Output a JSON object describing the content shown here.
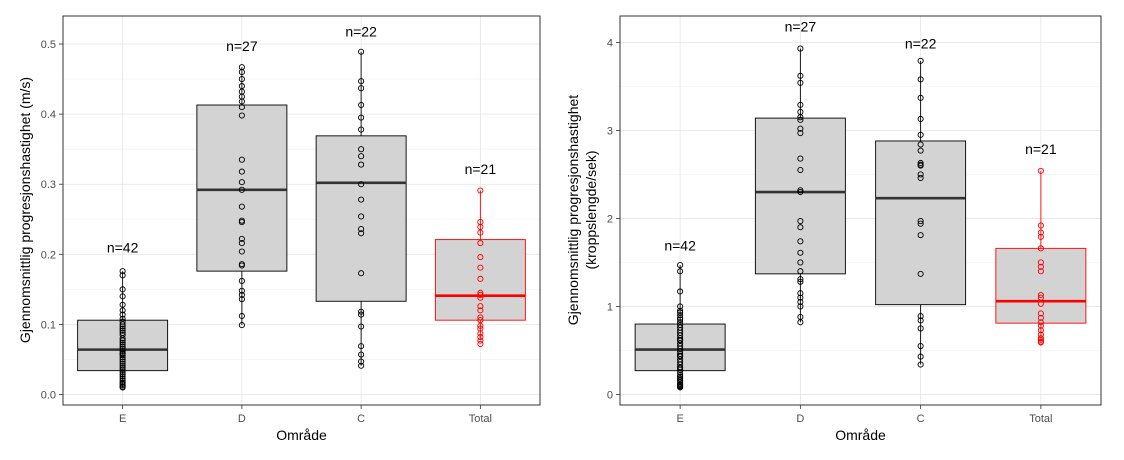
{
  "chart_data": [
    {
      "type": "boxplot",
      "xlabel": "Område",
      "ylabel": "Gjennomsnittlig progresjonshastighet (m/s)",
      "ylabel_lines": [
        "Gjennomsnittlig progresjonshastighet (m/s)"
      ],
      "ylim": [
        -0.015,
        0.54
      ],
      "yticks": [
        0.0,
        0.1,
        0.2,
        0.3,
        0.4,
        0.5
      ],
      "ytick_labels": [
        "0.0",
        "0.1",
        "0.2",
        "0.3",
        "0.4",
        "0.5"
      ],
      "categories": [
        "E",
        "D",
        "C",
        "Total"
      ],
      "grid": true,
      "boxes": [
        {
          "category": "E",
          "color": "#000000",
          "q1": 0.034,
          "median": 0.064,
          "q3": 0.106,
          "whisker_low": 0.01,
          "whisker_high": 0.176,
          "n_label": "n=42",
          "label_y": 0.21,
          "points": [
            0.176,
            0.17,
            0.15,
            0.14,
            0.128,
            0.12,
            0.114,
            0.108,
            0.104,
            0.1,
            0.097,
            0.094,
            0.091,
            0.088,
            0.085,
            0.08,
            0.077,
            0.074,
            0.071,
            0.068,
            0.065,
            0.062,
            0.059,
            0.056,
            0.053,
            0.05,
            0.047,
            0.044,
            0.041,
            0.038,
            0.035,
            0.032,
            0.029,
            0.026,
            0.023,
            0.02,
            0.017,
            0.015,
            0.013,
            0.011,
            0.01,
            0.058
          ]
        },
        {
          "category": "D",
          "color": "#000000",
          "q1": 0.176,
          "median": 0.292,
          "q3": 0.413,
          "whisker_low": 0.099,
          "whisker_high": 0.467,
          "n_label": "n=27",
          "label_y": 0.497,
          "points": [
            0.467,
            0.46,
            0.45,
            0.44,
            0.432,
            0.425,
            0.418,
            0.41,
            0.398,
            0.335,
            0.318,
            0.303,
            0.292,
            0.268,
            0.248,
            0.246,
            0.222,
            0.216,
            0.204,
            0.186,
            0.184,
            0.162,
            0.148,
            0.142,
            0.136,
            0.112,
            0.099
          ]
        },
        {
          "category": "C",
          "color": "#000000",
          "q1": 0.133,
          "median": 0.302,
          "q3": 0.369,
          "whisker_low": 0.041,
          "whisker_high": 0.489,
          "n_label": "n=22",
          "label_y": 0.518,
          "points": [
            0.489,
            0.447,
            0.437,
            0.413,
            0.395,
            0.378,
            0.35,
            0.34,
            0.328,
            0.3,
            0.278,
            0.254,
            0.236,
            0.23,
            0.173,
            0.118,
            0.114,
            0.097,
            0.069,
            0.057,
            0.047,
            0.041
          ]
        },
        {
          "category": "Total",
          "color": "#ff0000",
          "q1": 0.106,
          "median": 0.141,
          "q3": 0.221,
          "whisker_low": 0.077,
          "whisker_high": 0.291,
          "n_label": "n=21",
          "label_y": 0.322,
          "points": [
            0.291,
            0.246,
            0.239,
            0.231,
            0.216,
            0.196,
            0.181,
            0.165,
            0.145,
            0.142,
            0.138,
            0.126,
            0.12,
            0.11,
            0.106,
            0.098,
            0.094,
            0.087,
            0.082,
            0.077,
            0.072
          ]
        }
      ]
    },
    {
      "type": "boxplot",
      "xlabel": "Område",
      "ylabel": "Gjennomsnittlig progresjonshastighet (kroppslengde/sek)",
      "ylabel_lines": [
        "Gjennomsnittlig progresjonshastighet",
        "(kroppslengde/sek)"
      ],
      "ylim": [
        -0.12,
        4.3
      ],
      "yticks": [
        0,
        1,
        2,
        3,
        4
      ],
      "ytick_labels": [
        "0",
        "1",
        "2",
        "3",
        "4"
      ],
      "categories": [
        "E",
        "D",
        "C",
        "Total"
      ],
      "grid": true,
      "boxes": [
        {
          "category": "E",
          "color": "#000000",
          "q1": 0.27,
          "median": 0.51,
          "q3": 0.8,
          "whisker_low": 0.08,
          "whisker_high": 1.47,
          "n_label": "n=42",
          "label_y": 1.69,
          "points": [
            1.47,
            1.4,
            1.17,
            1.0,
            0.93,
            0.9,
            0.87,
            0.85,
            0.82,
            0.79,
            0.76,
            0.73,
            0.7,
            0.67,
            0.64,
            0.61,
            0.58,
            0.55,
            0.52,
            0.49,
            0.46,
            0.43,
            0.4,
            0.37,
            0.34,
            0.31,
            0.28,
            0.25,
            0.22,
            0.2,
            0.18,
            0.16,
            0.14,
            0.12,
            0.1,
            0.09,
            0.08,
            0.95,
            0.62,
            0.44,
            0.3,
            0.11
          ]
        },
        {
          "category": "D",
          "color": "#000000",
          "q1": 1.37,
          "median": 2.3,
          "q3": 3.14,
          "whisker_low": 0.82,
          "whisker_high": 3.93,
          "n_label": "n=27",
          "label_y": 4.18,
          "points": [
            3.93,
            3.62,
            3.54,
            3.29,
            3.21,
            3.15,
            3.12,
            3.02,
            2.97,
            2.68,
            2.55,
            2.32,
            2.3,
            1.97,
            1.9,
            1.74,
            1.61,
            1.5,
            1.4,
            1.31,
            1.28,
            1.15,
            1.1,
            1.05,
            0.88,
            0.82,
            1.0
          ]
        },
        {
          "category": "C",
          "color": "#000000",
          "q1": 1.02,
          "median": 2.23,
          "q3": 2.88,
          "whisker_low": 0.34,
          "whisker_high": 3.79,
          "n_label": "n=22",
          "label_y": 3.99,
          "points": [
            3.79,
            3.58,
            3.37,
            3.13,
            2.95,
            2.77,
            2.63,
            2.6,
            2.5,
            2.46,
            1.97,
            1.94,
            1.81,
            1.37,
            0.89,
            0.84,
            0.75,
            0.55,
            0.43,
            0.34,
            2.84,
            2.61
          ]
        },
        {
          "category": "Total",
          "color": "#ff0000",
          "q1": 0.81,
          "median": 1.06,
          "q3": 1.66,
          "whisker_low": 0.59,
          "whisker_high": 2.54,
          "n_label": "n=21",
          "label_y": 2.79,
          "points": [
            2.54,
            1.92,
            1.84,
            1.79,
            1.66,
            1.5,
            1.45,
            1.4,
            1.13,
            1.1,
            1.03,
            0.92,
            0.87,
            0.82,
            0.78,
            0.73,
            0.68,
            0.64,
            0.62,
            0.6,
            0.59
          ]
        }
      ]
    }
  ]
}
